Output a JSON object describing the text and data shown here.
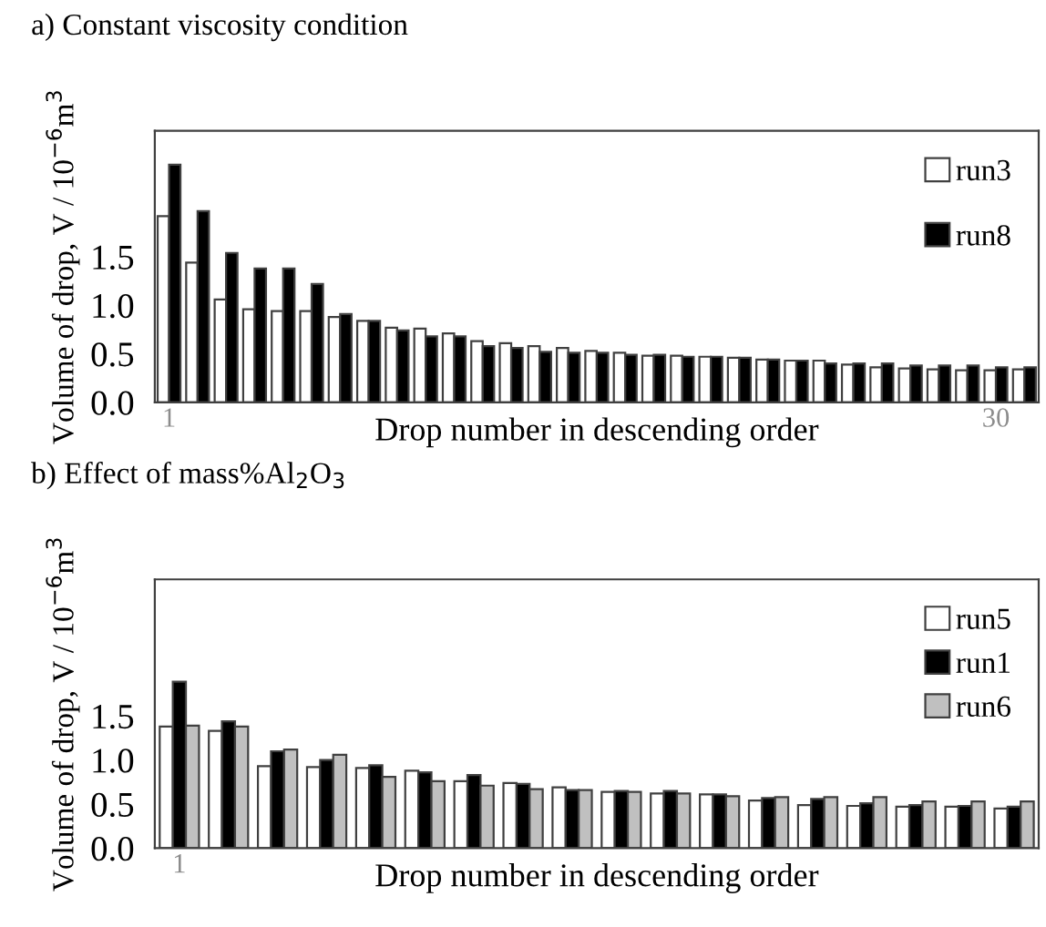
{
  "chart_data": [
    {
      "type": "bar",
      "title": "a) Constant viscosity condition",
      "xlabel": "Drop number in descending order",
      "ylabel": "Volume of drop, V / 10$^{−6}$m$^{3}$",
      "categories": [
        "1",
        null,
        null,
        null,
        null,
        null,
        null,
        null,
        null,
        null,
        null,
        null,
        null,
        null,
        null,
        null,
        null,
        null,
        null,
        null,
        null,
        null,
        null,
        null,
        null,
        null,
        null,
        null,
        null,
        "30",
        null
      ],
      "series": [
        {
          "name": "run3",
          "color": "#ffffff",
          "values": [
            1.92,
            1.44,
            1.06,
            0.96,
            0.94,
            0.94,
            0.88,
            0.84,
            0.77,
            0.76,
            0.71,
            0.63,
            0.61,
            0.58,
            0.56,
            0.53,
            0.51,
            0.48,
            0.48,
            0.47,
            0.46,
            0.44,
            0.43,
            0.43,
            0.39,
            0.36,
            0.35,
            0.34,
            0.33,
            0.33,
            0.34
          ]
        },
        {
          "name": "run8",
          "color": "#000000",
          "values": [
            2.45,
            1.97,
            1.54,
            1.38,
            1.38,
            1.22,
            0.91,
            0.84,
            0.74,
            0.68,
            0.68,
            0.58,
            0.56,
            0.52,
            0.51,
            0.51,
            0.49,
            0.49,
            0.47,
            0.47,
            0.46,
            0.44,
            0.43,
            0.4,
            0.4,
            0.4,
            0.38,
            0.38,
            0.38,
            0.36,
            0.36
          ]
        }
      ],
      "ylim": [
        0,
        2.8
      ],
      "yticks": [
        {
          "value": 0,
          "label": "0.0"
        },
        {
          "value": 0.5,
          "label": "0.5"
        },
        {
          "value": 1,
          "label": "1.0"
        },
        {
          "value": 1.5,
          "label": "1.5"
        }
      ],
      "grid": false,
      "legend": "top right"
    },
    {
      "type": "bar",
      "title": "b) Effect of mass%Al$_{2}$O$_{3}$",
      "xlabel": "Drop number in descending order",
      "ylabel": "Volume of drop, V / 10$^{−6}$m$^{3}$",
      "categories": [
        "1",
        null,
        null,
        null,
        null,
        null,
        null,
        null,
        null,
        null,
        null,
        null,
        null,
        null,
        null,
        null,
        null,
        null
      ],
      "series": [
        {
          "name": "run5",
          "color": "#ffffff",
          "values": [
            1.38,
            1.33,
            0.93,
            0.92,
            0.91,
            0.88,
            0.76,
            0.74,
            0.69,
            0.64,
            0.62,
            0.61,
            0.54,
            0.49,
            0.48,
            0.47,
            0.47,
            0.45
          ]
        },
        {
          "name": "run1",
          "color": "#000000",
          "values": [
            1.89,
            1.44,
            1.1,
            1.0,
            0.94,
            0.86,
            0.83,
            0.73,
            0.66,
            0.65,
            0.65,
            0.61,
            0.57,
            0.56,
            0.51,
            0.49,
            0.48,
            0.47
          ]
        },
        {
          "name": "run6",
          "color": "#c0c0c0",
          "values": [
            1.39,
            1.38,
            1.12,
            1.06,
            0.81,
            0.76,
            0.71,
            0.67,
            0.66,
            0.64,
            0.62,
            0.59,
            0.58,
            0.58,
            0.58,
            0.53,
            0.53,
            0.53
          ]
        }
      ],
      "ylim": [
        0,
        3.05
      ],
      "yticks": [
        {
          "value": 0,
          "label": "0.0"
        },
        {
          "value": 0.5,
          "label": "0.5"
        },
        {
          "value": 1,
          "label": "1.0"
        },
        {
          "value": 1.5,
          "label": "1.5"
        }
      ],
      "grid": false,
      "legend": "top right"
    }
  ]
}
